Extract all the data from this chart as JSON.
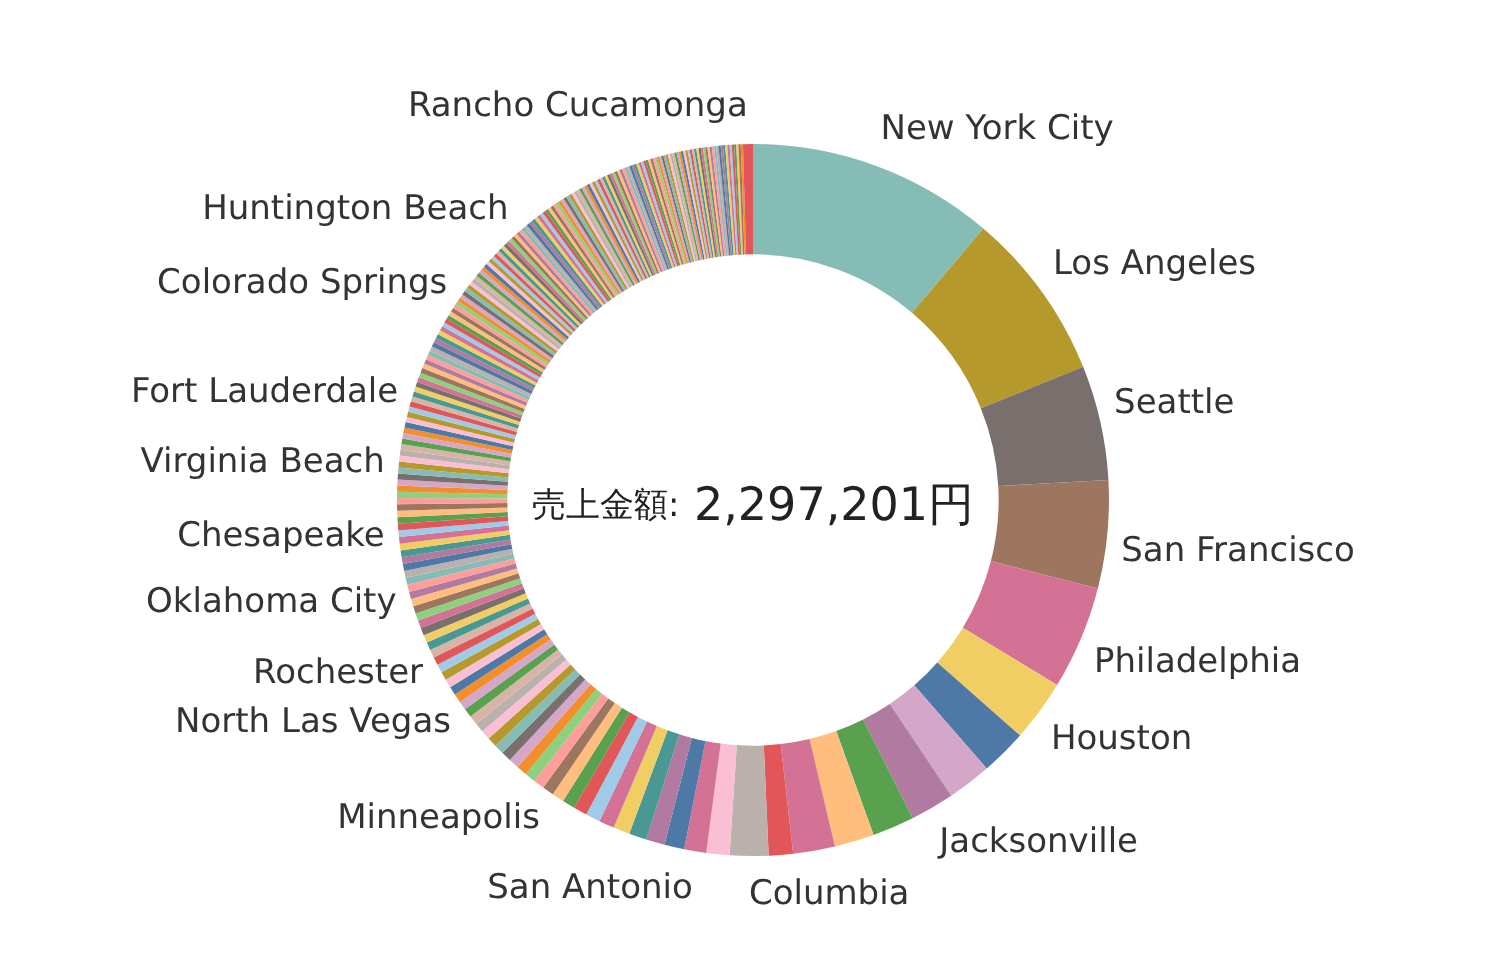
{
  "chart_data": {
    "type": "donut",
    "annotations": [
      "売上金額: 2,297,201円"
    ],
    "categories": [
      "New York City",
      "Los Angeles",
      "Seattle",
      "San Francisco",
      "Philadelphia",
      "Houston",
      null,
      null,
      "Jacksonville",
      null,
      null,
      null,
      null,
      "Columbia",
      null,
      "San Antonio",
      null,
      null,
      null,
      null,
      null,
      null,
      null,
      null,
      null,
      "Minneapolis",
      null,
      null,
      null,
      null,
      null,
      null,
      null,
      null,
      null,
      null,
      null,
      "North Las Vegas",
      null,
      null,
      null,
      null,
      null,
      "Rochester",
      null,
      null,
      null,
      null,
      null,
      null,
      null,
      null,
      "Oklahoma City",
      null,
      null,
      null,
      null,
      null,
      null,
      null,
      null,
      "Chesapeake",
      null,
      null,
      null,
      null,
      null,
      null,
      null,
      null,
      null,
      null,
      "Virginia Beach",
      null,
      null,
      null,
      null,
      null,
      null,
      null,
      null,
      null,
      null,
      null,
      "Fort Lauderdale",
      null,
      null,
      null,
      null,
      null,
      null,
      null,
      null,
      null,
      null,
      null,
      null,
      null,
      null,
      null,
      null,
      null,
      null,
      null,
      null,
      null,
      null,
      null,
      "Colorado Springs",
      null,
      null,
      null,
      null,
      null,
      null,
      null,
      null,
      null,
      null,
      null,
      null,
      null,
      null,
      null,
      null,
      null,
      null,
      null,
      null,
      null,
      null,
      null,
      "Huntington Beach",
      null,
      null,
      null,
      null,
      null,
      null,
      null,
      null,
      null,
      null,
      null,
      null,
      null,
      null,
      null,
      null,
      null,
      null,
      null,
      null,
      null,
      null,
      null,
      null,
      null,
      null,
      null,
      null,
      null,
      null,
      null,
      null,
      null,
      null,
      null,
      null,
      null,
      null,
      null,
      null,
      null,
      null,
      null,
      null,
      null,
      null,
      null,
      null,
      null,
      null,
      null,
      null,
      null,
      null,
      null,
      null,
      null,
      null,
      null,
      null,
      null,
      null,
      null,
      null,
      null,
      null,
      null,
      null,
      null,
      null,
      null,
      null,
      null,
      null,
      null,
      null,
      null,
      null,
      null,
      null,
      null,
      null,
      null,
      null,
      null,
      null,
      null,
      null,
      null,
      null,
      null,
      null,
      null,
      null,
      "Rancho Cucamonga"
    ],
    "values": [
      11.2,
      7.7,
      5.2,
      4.9,
      4.7,
      2.8,
      2.1,
      2.0,
      2.0,
      1.9,
      1.8,
      1.9,
      1.1,
      1.75,
      1.05,
      1.0,
      0.9,
      0.85,
      0.8,
      0.75,
      0.7,
      0.66,
      0.62,
      0.58,
      0.55,
      0.52,
      0.5,
      0.49,
      0.48,
      0.47,
      0.46,
      0.45,
      0.44,
      0.43,
      0.42,
      0.42,
      0.41,
      0.4,
      0.4,
      0.39,
      0.39,
      0.38,
      0.38,
      0.37,
      0.37,
      0.36,
      0.36,
      0.35,
      0.35,
      0.34,
      0.34,
      0.33,
      0.33,
      0.33,
      0.32,
      0.32,
      0.31,
      0.31,
      0.31,
      0.3,
      0.3,
      0.3,
      0.3,
      0.29,
      0.29,
      0.29,
      0.28,
      0.28,
      0.28,
      0.27,
      0.27,
      0.27,
      0.27,
      0.26,
      0.26,
      0.26,
      0.25,
      0.25,
      0.25,
      0.25,
      0.24,
      0.24,
      0.24,
      0.24,
      0.23,
      0.23,
      0.23,
      0.22,
      0.22,
      0.22,
      0.22,
      0.22,
      0.21,
      0.21,
      0.21,
      0.21,
      0.21,
      0.2,
      0.2,
      0.2,
      0.2,
      0.2,
      0.19,
      0.19,
      0.19,
      0.19,
      0.19,
      0.18,
      0.18,
      0.18,
      0.18,
      0.18,
      0.18,
      0.17,
      0.17,
      0.17,
      0.17,
      0.17,
      0.17,
      0.17,
      0.17,
      0.16,
      0.16,
      0.16,
      0.16,
      0.16,
      0.16,
      0.16,
      0.16,
      0.16,
      0.15,
      0.15,
      0.15,
      0.15,
      0.15,
      0.15,
      0.15,
      0.15,
      0.15,
      0.15,
      0.15,
      0.15,
      0.15,
      0.14,
      0.14,
      0.14,
      0.14,
      0.14,
      0.14,
      0.14,
      0.14,
      0.14,
      0.14,
      0.13,
      0.13,
      0.13,
      0.13,
      0.13,
      0.13,
      0.13,
      0.13,
      0.13,
      0.13,
      0.13,
      0.12,
      0.12,
      0.12,
      0.12,
      0.12,
      0.12,
      0.12,
      0.12,
      0.12,
      0.12,
      0.12,
      0.11,
      0.11,
      0.11,
      0.11,
      0.11,
      0.11,
      0.11,
      0.11,
      0.11,
      0.11,
      0.11,
      0.1,
      0.1,
      0.1,
      0.1,
      0.1,
      0.1,
      0.1,
      0.1,
      0.1,
      0.1,
      0.1,
      0.1,
      0.1,
      0.1,
      0.1,
      0.1,
      0.1,
      0.1,
      0.1,
      0.1,
      0.1,
      0.1,
      0.1,
      0.1,
      0.1,
      0.1,
      0.1,
      0.1,
      0.1,
      0.1,
      0.1,
      0.1,
      0.1,
      0.1,
      0.1,
      0.1,
      0.1,
      0.1,
      0.1,
      0.1,
      0.1,
      0.45
    ],
    "colors": [
      "#86bcb6",
      "#b6992d",
      "#79706e",
      "#9d7660",
      "#d37295",
      "#f1ce63",
      "#4e79a7",
      "#d4a6c8",
      "#b07aa1",
      "#59a14f",
      "#ffbe7d",
      "#d37295",
      "#e15759",
      "#bab0ac",
      "#fabfd2",
      "#d37295",
      "#4e79a7",
      "#b07aa1",
      "#499894",
      "#f1ce63",
      "#d37295",
      "#a0cbe8",
      "#e15759",
      "#59a14f",
      "#ffbe7d",
      "#9d7660",
      "#ff9d9a",
      "#8cd17d",
      "#f28e2b",
      "#d4a6c8",
      "#79706e",
      "#86bcb6",
      "#b6992d",
      "#fabfd2",
      "#bab0ac",
      "#d7b5a6",
      "#59a14f",
      "#d4a6c8",
      "#f28e2b",
      "#4e79a7",
      "#fabfd2",
      "#b6992d",
      "#a0cbe8",
      "#e15759",
      "#d7b5a6",
      "#499894",
      "#f1ce63",
      "#79706e",
      "#d37295",
      "#8cd17d",
      "#9d7660",
      "#ffbe7d",
      "#b07aa1",
      "#ff9d9a",
      "#86bcb6",
      "#bab0ac",
      "#4e79a7",
      "#b07aa1",
      "#499894",
      "#f1ce63",
      "#d37295",
      "#a0cbe8",
      "#e15759",
      "#59a14f",
      "#ffbe7d",
      "#9d7660",
      "#ff9d9a",
      "#8cd17d",
      "#f28e2b",
      "#d4a6c8",
      "#79706e",
      "#86bcb6",
      "#b6992d",
      "#fabfd2",
      "#bab0ac",
      "#d7b5a6",
      "#59a14f",
      "#d4a6c8",
      "#f28e2b",
      "#4e79a7",
      "#fabfd2",
      "#b6992d",
      "#a0cbe8",
      "#e15759",
      "#d7b5a6",
      "#499894",
      "#f1ce63",
      "#79706e",
      "#d37295",
      "#8cd17d",
      "#9d7660",
      "#ffbe7d",
      "#b07aa1",
      "#ff9d9a",
      "#86bcb6",
      "#bab0ac",
      "#4e79a7",
      "#b07aa1",
      "#499894",
      "#f1ce63",
      "#d37295",
      "#a0cbe8",
      "#e15759",
      "#59a14f",
      "#ffbe7d",
      "#9d7660",
      "#ff9d9a",
      "#8cd17d",
      "#f28e2b",
      "#d4a6c8",
      "#79706e",
      "#86bcb6",
      "#b6992d",
      "#fabfd2",
      "#bab0ac",
      "#d7b5a6",
      "#59a14f",
      "#d4a6c8",
      "#f28e2b",
      "#4e79a7",
      "#fabfd2",
      "#b6992d",
      "#a0cbe8",
      "#e15759",
      "#d7b5a6",
      "#499894",
      "#f1ce63",
      "#79706e",
      "#d37295",
      "#8cd17d",
      "#9d7660",
      "#ffbe7d",
      "#b07aa1",
      "#ff9d9a",
      "#86bcb6",
      "#bab0ac",
      "#4e79a7",
      "#b07aa1",
      "#499894",
      "#f1ce63",
      "#d37295",
      "#a0cbe8",
      "#e15759",
      "#59a14f",
      "#ffbe7d",
      "#9d7660",
      "#ff9d9a",
      "#8cd17d",
      "#f28e2b",
      "#d4a6c8",
      "#79706e",
      "#86bcb6",
      "#b6992d",
      "#fabfd2",
      "#bab0ac",
      "#d7b5a6",
      "#59a14f",
      "#d4a6c8",
      "#f28e2b",
      "#4e79a7",
      "#fabfd2",
      "#b6992d",
      "#a0cbe8",
      "#e15759",
      "#d7b5a6",
      "#499894",
      "#f1ce63",
      "#79706e",
      "#d37295",
      "#8cd17d",
      "#9d7660",
      "#ffbe7d",
      "#b07aa1",
      "#ff9d9a",
      "#86bcb6",
      "#bab0ac",
      "#4e79a7",
      "#b07aa1",
      "#499894",
      "#f1ce63",
      "#d37295",
      "#a0cbe8",
      "#e15759",
      "#59a14f",
      "#ffbe7d",
      "#9d7660",
      "#ff9d9a",
      "#8cd17d",
      "#f28e2b",
      "#d4a6c8",
      "#79706e",
      "#86bcb6",
      "#b6992d",
      "#fabfd2",
      "#bab0ac",
      "#d7b5a6",
      "#59a14f",
      "#d4a6c8",
      "#f28e2b",
      "#4e79a7",
      "#fabfd2",
      "#b6992d",
      "#a0cbe8",
      "#e15759",
      "#d7b5a6",
      "#499894",
      "#f1ce63",
      "#79706e",
      "#d37295",
      "#8cd17d",
      "#9d7660",
      "#ffbe7d",
      "#b07aa1",
      "#ff9d9a",
      "#86bcb6",
      "#bab0ac",
      "#4e79a7",
      "#b07aa1",
      "#499894",
      "#f1ce63",
      "#d37295",
      "#a0cbe8",
      "#e15759",
      "#59a14f",
      "#ffbe7d",
      "#9d7660",
      "#f28e2b",
      "#e15759"
    ]
  }
}
